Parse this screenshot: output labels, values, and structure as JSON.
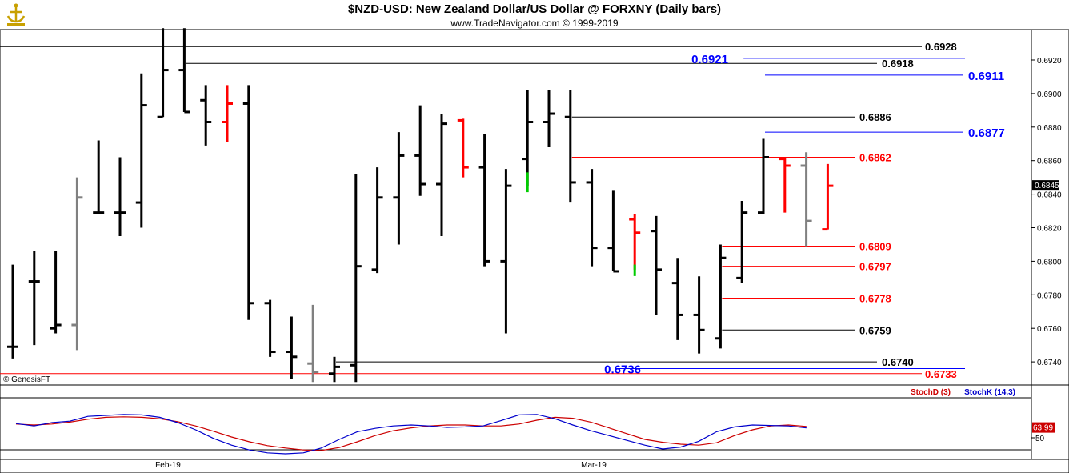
{
  "header": {
    "title": "$NZD-USD:  New Zealand Dollar/US Dollar @ FORXNY  (Daily bars)",
    "subtitle": "www.TradeNavigator.com © 1999-2019"
  },
  "copyright": "© GenesisFT",
  "x_labels": [
    "Feb-19",
    "Mar-19"
  ],
  "chart_data": [
    {
      "type": "ohlc",
      "ylim": [
        0.6728,
        0.694
      ],
      "y_ticks": [
        "0.6740",
        "0.6760",
        "0.6780",
        "0.6800",
        "0.6820",
        "0.6840",
        "0.6860",
        "0.6880",
        "0.6900",
        "0.6920"
      ],
      "last_price": "0.6845",
      "colors": {
        "black": "#000000",
        "red": "#ff0000",
        "gray": "#808080",
        "green": "#00cc00",
        "blue": "#0000ff"
      },
      "bars": [
        {
          "o": 0.6749,
          "h": 0.6798,
          "l": 0.6742,
          "c": 0.6749,
          "color": "black"
        },
        {
          "o": 0.6788,
          "h": 0.6806,
          "l": 0.675,
          "c": 0.6788,
          "color": "black"
        },
        {
          "o": 0.676,
          "h": 0.6806,
          "l": 0.6757,
          "c": 0.6762,
          "color": "black"
        },
        {
          "o": 0.6762,
          "h": 0.685,
          "l": 0.6747,
          "c": 0.6838,
          "color": "gray"
        },
        {
          "o": 0.6829,
          "h": 0.6872,
          "l": 0.6828,
          "c": 0.6829,
          "color": "black"
        },
        {
          "o": 0.6829,
          "h": 0.6862,
          "l": 0.6815,
          "c": 0.6829,
          "color": "black"
        },
        {
          "o": 0.6835,
          "h": 0.6912,
          "l": 0.682,
          "c": 0.6893,
          "color": "black"
        },
        {
          "o": 0.6886,
          "h": 0.6939,
          "l": 0.6886,
          "c": 0.6914,
          "color": "black"
        },
        {
          "o": 0.6914,
          "h": 0.6939,
          "l": 0.6889,
          "c": 0.6889,
          "color": "black"
        },
        {
          "o": 0.6896,
          "h": 0.6905,
          "l": 0.6869,
          "c": 0.6883,
          "color": "black"
        },
        {
          "o": 0.6883,
          "h": 0.6905,
          "l": 0.6871,
          "c": 0.6894,
          "color": "red"
        },
        {
          "o": 0.6894,
          "h": 0.6905,
          "l": 0.6765,
          "c": 0.6775,
          "color": "black"
        },
        {
          "o": 0.6775,
          "h": 0.6777,
          "l": 0.6743,
          "c": 0.6746,
          "color": "black"
        },
        {
          "o": 0.6746,
          "h": 0.6767,
          "l": 0.673,
          "c": 0.6743,
          "color": "black"
        },
        {
          "o": 0.6739,
          "h": 0.6774,
          "l": 0.6728,
          "c": 0.6734,
          "color": "gray"
        },
        {
          "o": 0.6733,
          "h": 0.6743,
          "l": 0.6728,
          "c": 0.6737,
          "color": "black"
        },
        {
          "o": 0.6738,
          "h": 0.6852,
          "l": 0.6728,
          "c": 0.6797,
          "color": "black"
        },
        {
          "o": 0.6795,
          "h": 0.6856,
          "l": 0.6793,
          "c": 0.6838,
          "color": "black"
        },
        {
          "o": 0.6838,
          "h": 0.6877,
          "l": 0.681,
          "c": 0.6863,
          "color": "black"
        },
        {
          "o": 0.6863,
          "h": 0.6893,
          "l": 0.6839,
          "c": 0.6846,
          "color": "black"
        },
        {
          "o": 0.6846,
          "h": 0.6888,
          "l": 0.6815,
          "c": 0.6882,
          "color": "black"
        },
        {
          "o": 0.6884,
          "h": 0.6885,
          "l": 0.685,
          "c": 0.6856,
          "color": "red"
        },
        {
          "o": 0.6856,
          "h": 0.6876,
          "l": 0.6797,
          "c": 0.68,
          "color": "black"
        },
        {
          "o": 0.68,
          "h": 0.6855,
          "l": 0.6757,
          "c": 0.6845,
          "color": "black"
        },
        {
          "o": 0.6861,
          "h": 0.6902,
          "l": 0.6845,
          "c": 0.6883,
          "color": "black"
        },
        {
          "o": 0.6883,
          "h": 0.6902,
          "l": 0.6868,
          "c": 0.6888,
          "color": "black"
        },
        {
          "o": 0.6886,
          "h": 0.6902,
          "l": 0.6835,
          "c": 0.6847,
          "color": "black"
        },
        {
          "o": 0.6847,
          "h": 0.6855,
          "l": 0.6797,
          "c": 0.6808,
          "color": "black"
        },
        {
          "o": 0.6808,
          "h": 0.6842,
          "l": 0.6794,
          "c": 0.6794,
          "color": "black"
        },
        {
          "o": 0.6825,
          "h": 0.6828,
          "l": 0.6795,
          "c": 0.6817,
          "color": "red"
        },
        {
          "o": 0.6818,
          "h": 0.6827,
          "l": 0.6768,
          "c": 0.6795,
          "color": "black"
        },
        {
          "o": 0.6787,
          "h": 0.6802,
          "l": 0.6753,
          "c": 0.6768,
          "color": "black"
        },
        {
          "o": 0.6768,
          "h": 0.6791,
          "l": 0.6745,
          "c": 0.6759,
          "color": "black"
        },
        {
          "o": 0.6754,
          "h": 0.681,
          "l": 0.6748,
          "c": 0.6802,
          "color": "black"
        },
        {
          "o": 0.679,
          "h": 0.6836,
          "l": 0.6787,
          "c": 0.6829,
          "color": "black"
        },
        {
          "o": 0.6829,
          "h": 0.6873,
          "l": 0.6828,
          "c": 0.6862,
          "color": "black"
        },
        {
          "o": 0.6861,
          "h": 0.6862,
          "l": 0.6829,
          "c": 0.6857,
          "color": "red"
        },
        {
          "o": 0.6857,
          "h": 0.6865,
          "l": 0.6809,
          "c": 0.6824,
          "color": "gray"
        },
        {
          "o": 0.6819,
          "h": 0.6858,
          "l": 0.6819,
          "c": 0.6845,
          "color": "red"
        }
      ],
      "green_segments": [
        {
          "bar": 24,
          "from": 0.6853,
          "to": 0.6845
        },
        {
          "bar": 29,
          "from": 0.6798,
          "to": 0.6795
        }
      ],
      "levels": [
        {
          "price": 0.6928,
          "label": "0.6928",
          "color": "black",
          "from_bar": -1
        },
        {
          "price": 0.6918,
          "label": "0.6918",
          "color": "black",
          "from_bar": 8
        },
        {
          "price": 0.6921,
          "label": "0.6921",
          "color": "blue",
          "from_bar": 34
        },
        {
          "price": 0.6911,
          "label": "0.6911",
          "color": "blue",
          "from_bar": 35
        },
        {
          "price": 0.6886,
          "label": "0.6886",
          "color": "black",
          "from_bar": 26
        },
        {
          "price": 0.6877,
          "label": "0.6877",
          "color": "blue",
          "from_bar": 35
        },
        {
          "price": 0.6862,
          "label": "0.6862",
          "color": "red",
          "from_bar": 26
        },
        {
          "price": 0.6809,
          "label": "0.6809",
          "color": "red",
          "from_bar": 33
        },
        {
          "price": 0.6797,
          "label": "0.6797",
          "color": "red",
          "from_bar": 33
        },
        {
          "price": 0.6778,
          "label": "0.6778",
          "color": "red",
          "from_bar": 33
        },
        {
          "price": 0.6759,
          "label": "0.6759",
          "color": "black",
          "from_bar": 33
        },
        {
          "price": 0.674,
          "label": "0.6740",
          "color": "black",
          "from_bar": 15
        },
        {
          "price": 0.6736,
          "label": "0.6736",
          "color": "blue",
          "from_bar": 28
        },
        {
          "price": 0.6733,
          "label": "0.6733",
          "color": "red",
          "from_bar": -1
        }
      ]
    },
    {
      "type": "line",
      "indicator": "Stochastic",
      "ylim": [
        0,
        100
      ],
      "y_ticks": [
        "50"
      ],
      "last_value": "63.99",
      "series": [
        {
          "name": "StochD (3)",
          "color": "#cc0000",
          "values": [
            72,
            70,
            72,
            76,
            82,
            86,
            87,
            86,
            83,
            77,
            68,
            57,
            45,
            35,
            27,
            22,
            18,
            17,
            23,
            35,
            48,
            58,
            64,
            68,
            70,
            70,
            68,
            68,
            72,
            80,
            86,
            84,
            76,
            64,
            52,
            40,
            34,
            30,
            28,
            33,
            48,
            60,
            68,
            70,
            67
          ]
        },
        {
          "name": "StochK (14,3)",
          "color": "#0000cc",
          "values": [
            73,
            68,
            75,
            78,
            88,
            90,
            92,
            91,
            86,
            75,
            60,
            42,
            28,
            18,
            12,
            10,
            12,
            22,
            40,
            56,
            63,
            68,
            70,
            68,
            65,
            66,
            68,
            79,
            91,
            92,
            83,
            70,
            58,
            48,
            38,
            28,
            20,
            24,
            36,
            56,
            66,
            70,
            69,
            68,
            64
          ]
        }
      ]
    }
  ]
}
